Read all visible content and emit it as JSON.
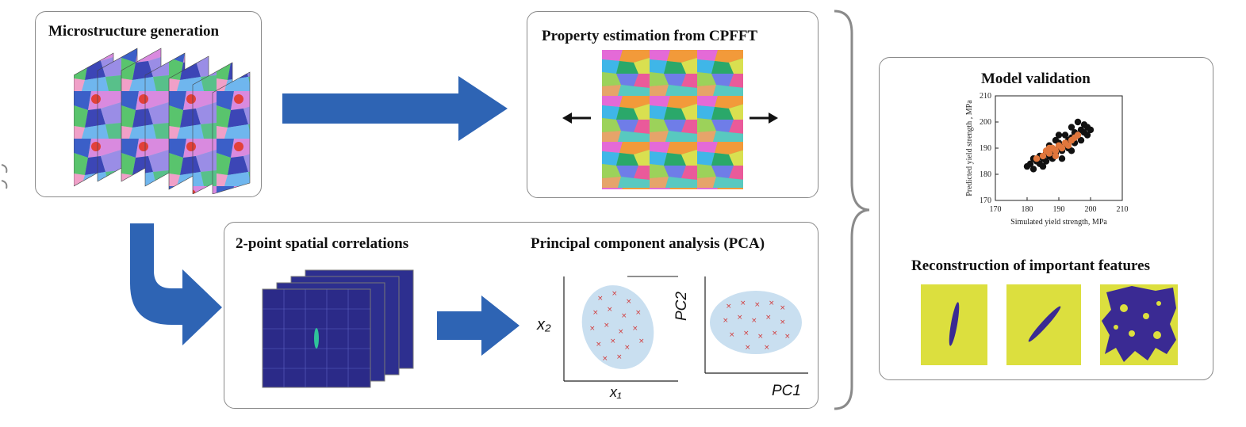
{
  "boxes": {
    "microstructure": {
      "title": "Microstructure generation"
    },
    "cpfft": {
      "title": "Property estimation from CPFFT"
    },
    "correlations": {
      "title": "2-point spatial correlations"
    },
    "pca": {
      "title": "Principal component analysis (PCA)"
    },
    "validation": {
      "title": "Model validation"
    },
    "reconstruction": {
      "title": "Reconstruction of important features"
    }
  },
  "pca_axes": {
    "left_y": "x₂",
    "left_x": "x₁",
    "right_y": "PC2",
    "right_x": "PC1"
  },
  "chart_data": {
    "type": "scatter",
    "title": "",
    "xlabel": "Simulated yield strength, MPa",
    "ylabel": "Predicted yield strength , MPa",
    "xlim": [
      170,
      210
    ],
    "ylim": [
      170,
      210
    ],
    "xticks": [
      "170",
      "180",
      "190",
      "200",
      "210"
    ],
    "yticks": [
      "170",
      "180",
      "190",
      "200",
      "210"
    ],
    "series": [
      {
        "color": "#111111",
        "points": [
          [
            180,
            183
          ],
          [
            181,
            184
          ],
          [
            182,
            182
          ],
          [
            183,
            185
          ],
          [
            184,
            184
          ],
          [
            185,
            186
          ],
          [
            186,
            185
          ],
          [
            186,
            188
          ],
          [
            187,
            187
          ],
          [
            188,
            189
          ],
          [
            189,
            188
          ],
          [
            190,
            190
          ],
          [
            190,
            192
          ],
          [
            191,
            189
          ],
          [
            192,
            191
          ],
          [
            193,
            193
          ],
          [
            193,
            190
          ],
          [
            194,
            194
          ],
          [
            195,
            192
          ],
          [
            195,
            196
          ],
          [
            196,
            195
          ],
          [
            197,
            197
          ],
          [
            198,
            196
          ],
          [
            198,
            199
          ],
          [
            199,
            198
          ],
          [
            196,
            200
          ],
          [
            194,
            198
          ],
          [
            192,
            195
          ],
          [
            189,
            193
          ],
          [
            188,
            186
          ],
          [
            185,
            183
          ],
          [
            187,
            191
          ],
          [
            191,
            186
          ],
          [
            194,
            189
          ],
          [
            197,
            193
          ],
          [
            199,
            195
          ],
          [
            200,
            197
          ],
          [
            182,
            186
          ],
          [
            184,
            187
          ],
          [
            190,
            195
          ]
        ]
      },
      {
        "color": "#e0763c",
        "points": [
          [
            183,
            186
          ],
          [
            185,
            187
          ],
          [
            186,
            189
          ],
          [
            187,
            188
          ],
          [
            188,
            190
          ],
          [
            189,
            189
          ],
          [
            190,
            191
          ],
          [
            191,
            190
          ],
          [
            192,
            192
          ],
          [
            193,
            191
          ],
          [
            194,
            193
          ],
          [
            195,
            194
          ],
          [
            189,
            187
          ],
          [
            187,
            190
          ],
          [
            196,
            195
          ]
        ]
      }
    ]
  },
  "colors": {
    "arrow": "#2e64b4",
    "feature_bg": "#dcdf3e",
    "feature_fg": "#3a2a93",
    "cluster": "#c9dff0",
    "cluster_marker": "#d23a3a"
  }
}
